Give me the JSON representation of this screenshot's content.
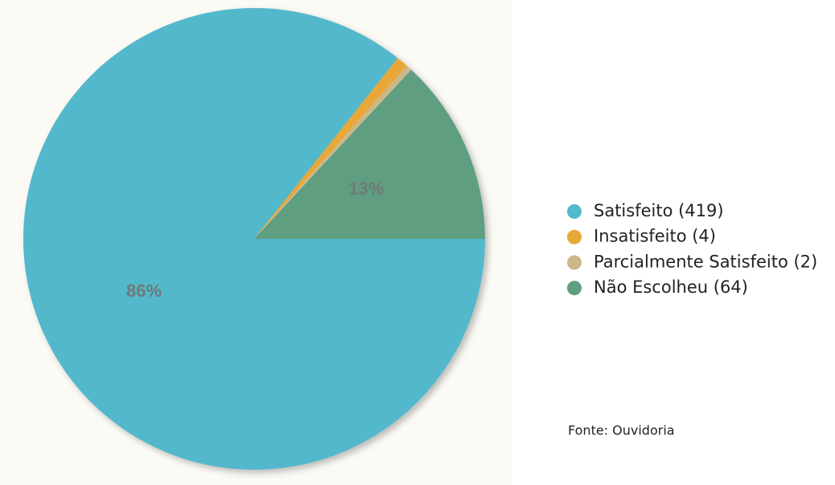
{
  "chart_data": {
    "type": "pie",
    "series": [
      {
        "name": "Satisfeito (419)",
        "color": "#52b8cc"
      },
      {
        "name": "Insatisfeito (4)",
        "color": "#e8a838"
      },
      {
        "name": "Parcialmente Satisfeito (2)",
        "color": "#cbb88a"
      },
      {
        "name": "Não Escolheu (64)",
        "color": "#5f9e80"
      }
    ],
    "values": [
      85.69,
      0.82,
      0.41,
      13.09
    ],
    "value_labels": [
      "86%",
      null,
      null,
      "13%"
    ],
    "legend": "right",
    "source": "Fonte: Ouvidoria"
  }
}
